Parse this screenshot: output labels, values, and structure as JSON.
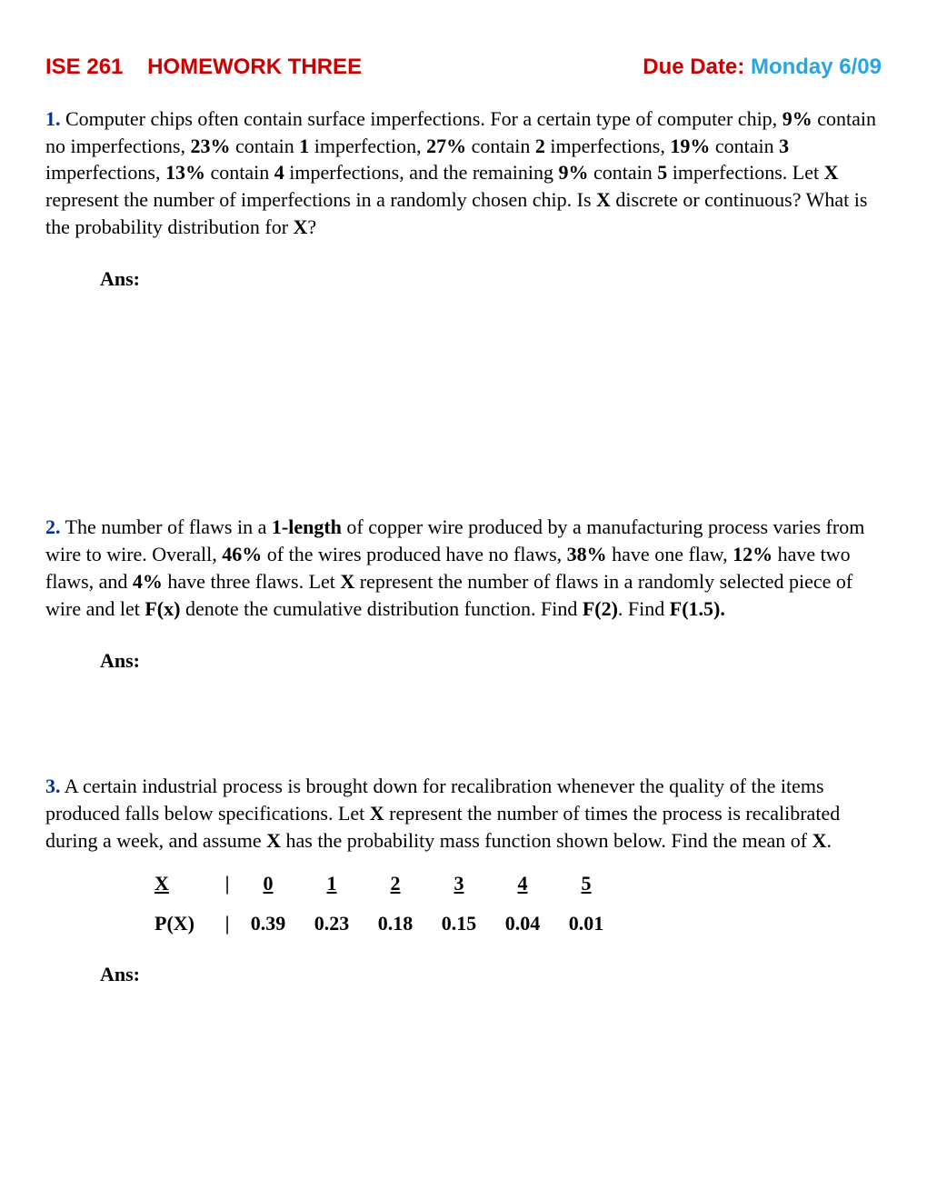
{
  "header": {
    "course": "ISE 261",
    "title": "HOMEWORK THREE",
    "due_label": "Due Date:",
    "due_date": "Monday 6/09"
  },
  "colors": {
    "title_red": "#cc0000",
    "date_blue": "#2aa5e0",
    "problem_num_blue": "#003399",
    "text": "#000000",
    "background": "#ffffff"
  },
  "typography": {
    "header_family": "Verdana",
    "header_size_pt": 18,
    "body_family": "Times New Roman",
    "body_size_pt": 16
  },
  "problems": {
    "p1": {
      "num": "1.",
      "text_parts": [
        " Computer chips often contain surface imperfections. For a certain type of computer chip, ",
        "9%",
        " contain no imperfections, ",
        "23%",
        " contain ",
        "1",
        " imperfection, ",
        "27%",
        " contain ",
        "2",
        " imperfections, ",
        "19%",
        " contain ",
        "3",
        " imperfections, ",
        "13%",
        " contain ",
        "4",
        " imperfections, and the remaining ",
        "9%",
        " contain ",
        "5",
        " imperfections. Let ",
        "X",
        " represent the number of imperfections in a randomly chosen chip. Is ",
        "X",
        " discrete or continuous? What is the probability distribution for ",
        "X",
        "?"
      ],
      "ans_label": "Ans:"
    },
    "p2": {
      "num": "2.",
      "text_parts": [
        " The number of flaws in a ",
        "1-length",
        " of copper wire produced by a manufacturing process varies from wire to wire. Overall, ",
        "46%",
        " of the wires produced have no flaws, ",
        "38%",
        " have one flaw, ",
        "12%",
        " have two flaws, and ",
        "4%",
        " have three flaws. Let ",
        "X",
        " represent the number of flaws in a randomly selected piece of wire and let ",
        "F(x)",
        " denote the cumulative distribution function. Find ",
        "F(2)",
        ". Find ",
        "F(1.5)."
      ],
      "ans_label": "Ans:"
    },
    "p3": {
      "num": "3.",
      "text_parts": [
        " A certain industrial process is brought down for recalibration whenever the quality of the items produced falls below specifications. Let ",
        "X",
        " represent the number of times the process is recalibrated during a week, and assume ",
        "X",
        " has the probability mass function shown below. Find the mean of ",
        "X",
        "."
      ],
      "ans_label": "Ans:",
      "pmf": {
        "row_label_x": "X",
        "row_label_p": "P(X)",
        "sep": "|",
        "x_values": [
          "0",
          "1",
          "2",
          "3",
          "4",
          "5"
        ],
        "p_values": [
          "0.39",
          "0.23",
          "0.18",
          "0.15",
          "0.04",
          "0.01"
        ]
      }
    }
  }
}
